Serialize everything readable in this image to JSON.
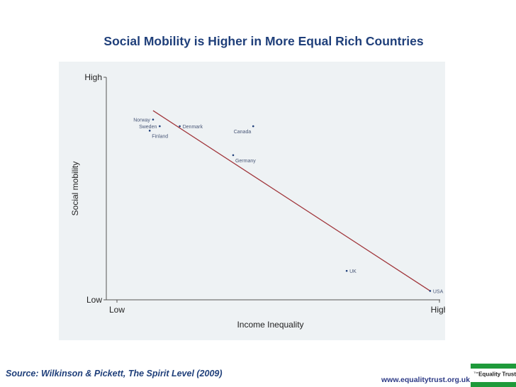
{
  "title": "Social Mobility is Higher in More Equal Rich Countries",
  "source": "Source: Wilkinson & Pickett, The Spirit Level (2009)",
  "website": "www.equalitytrust.org.uk",
  "logo": {
    "prefix": "The",
    "name": "Equality Trust"
  },
  "colors": {
    "title": "#1f3f7a",
    "panel": "#eef2f4",
    "trend_line": "#a0353a",
    "points": "#1f3f7a",
    "logo_green": "#1e9a3a"
  },
  "chart_data": {
    "type": "scatter",
    "title": "Social Mobility is Higher in More Equal Rich Countries",
    "xlabel": "Income Inequality",
    "ylabel": "Social mobility",
    "x_ticks": [
      "Low",
      "High"
    ],
    "y_ticks": [
      "Low",
      "High"
    ],
    "xlim": [
      0,
      100
    ],
    "ylim": [
      0,
      100
    ],
    "grid": false,
    "points": [
      {
        "label": "Norway",
        "x": 14,
        "y": 81,
        "label_pos": "left"
      },
      {
        "label": "Sweden",
        "x": 16,
        "y": 78,
        "label_pos": "left"
      },
      {
        "label": "Finland",
        "x": 13,
        "y": 76,
        "label_pos": "below"
      },
      {
        "label": "Denmark",
        "x": 22,
        "y": 78,
        "label_pos": "right"
      },
      {
        "label": "Canada",
        "x": 44,
        "y": 78,
        "label_pos": "below-left"
      },
      {
        "label": "Germany",
        "x": 38,
        "y": 65,
        "label_pos": "below-right"
      },
      {
        "label": "UK",
        "x": 72,
        "y": 13,
        "label_pos": "right"
      },
      {
        "label": "USA",
        "x": 97,
        "y": 4,
        "label_pos": "right"
      }
    ],
    "trend_line": {
      "x": [
        14,
        97
      ],
      "y": [
        85,
        4
      ]
    }
  }
}
